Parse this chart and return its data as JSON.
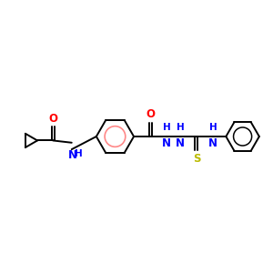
{
  "bg_color": "#ffffff",
  "bond_color": "#000000",
  "o_color": "#ff0000",
  "n_color": "#0000ff",
  "s_color": "#bbbb00",
  "aromatic_color": "#ff8888",
  "line_width": 1.4,
  "font_size": 8.5,
  "figsize": [
    3.0,
    3.0
  ],
  "dpi": 100,
  "xlim": [
    0,
    10
  ],
  "ylim": [
    2,
    8
  ]
}
